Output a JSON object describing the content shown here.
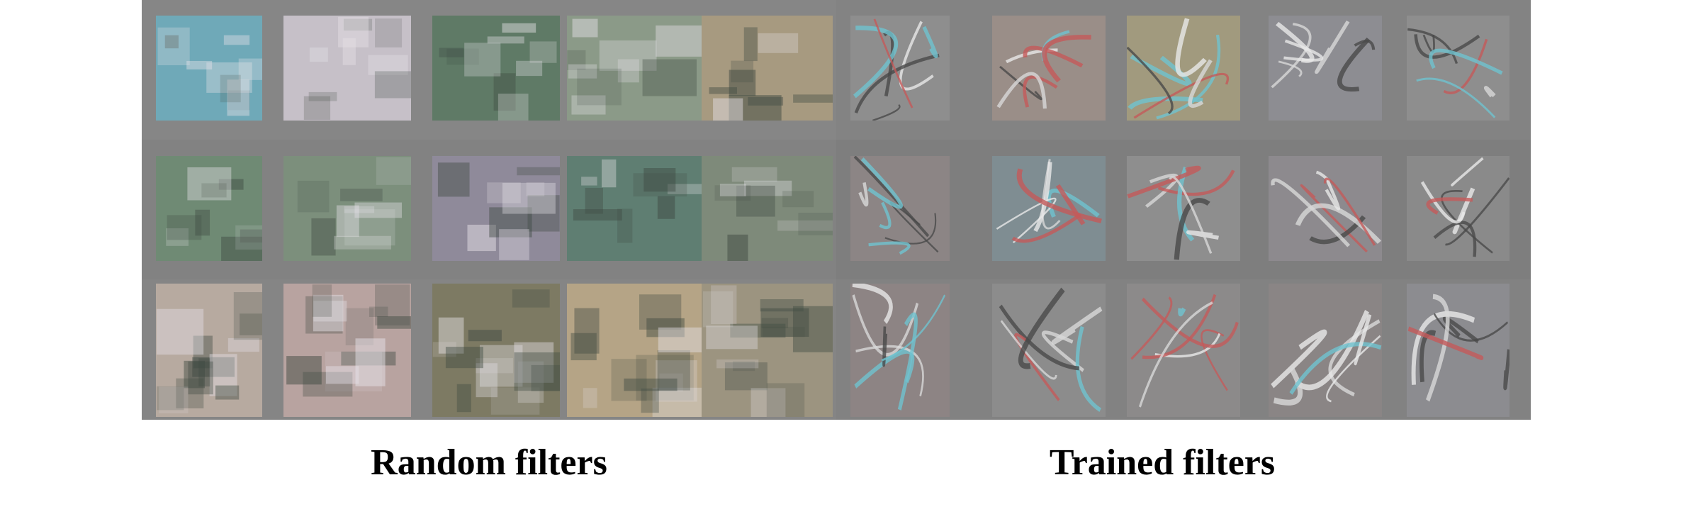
{
  "captions": {
    "random": "Random filters",
    "trained": "Trained filters"
  },
  "colors": {
    "random_panel_bg": "#858585",
    "trained_panel_bg": "#808080",
    "caption_text": "#000000"
  },
  "random_tiles": [
    [
      "#6fa9b8",
      "#c6c0c8",
      "#5f7a66",
      "#8b9a88",
      "#a79a80"
    ],
    [
      "#6f8a74",
      "#7c8f7c",
      "#8f8a9a",
      "#5f7e72",
      "#7e8a7a"
    ],
    [
      "#b7aaa0",
      "#b8a3a0",
      "#7d7a63",
      "#b5a486",
      "#9c9480"
    ]
  ],
  "trained_tiles": [
    [
      "#8e8e8e",
      "#9a8e88",
      "#a19a7e",
      "#8d8d92",
      "#8e8e8e"
    ],
    [
      "#8c8585",
      "#7f8d92",
      "#8e8e8e",
      "#8d8a8e",
      "#8a8a8a"
    ],
    [
      "#8d8484",
      "#8c8c8c",
      "#8c8a8a",
      "#8a8585",
      "#8c8c90"
    ]
  ]
}
